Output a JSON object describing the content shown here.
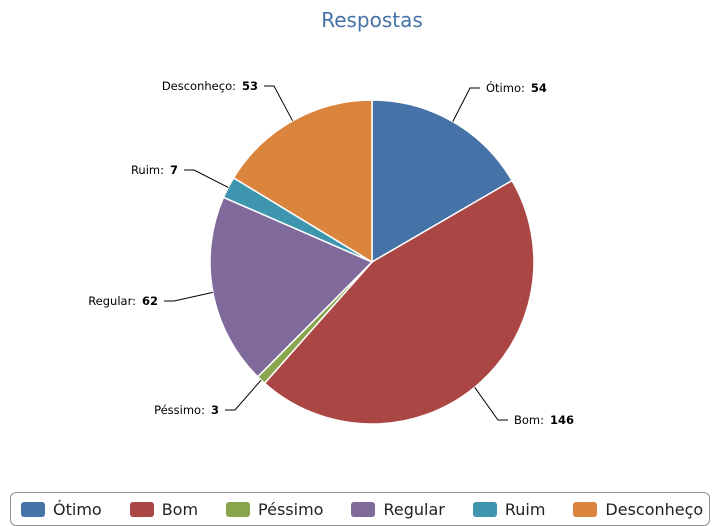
{
  "chart_data": {
    "type": "pie",
    "title": "Respostas",
    "slices": [
      {
        "label": "Ótimo",
        "value": 54,
        "color": "#4572A7"
      },
      {
        "label": "Bom",
        "value": 146,
        "color": "#AA4643"
      },
      {
        "label": "Péssimo",
        "value": 3,
        "color": "#89A54E"
      },
      {
        "label": "Regular",
        "value": 62,
        "color": "#80699B"
      },
      {
        "label": "Ruim",
        "value": 7,
        "color": "#3D96AE"
      },
      {
        "label": "Desconheço",
        "value": 53,
        "color": "#DB843D"
      }
    ],
    "legend_position": "bottom"
  }
}
